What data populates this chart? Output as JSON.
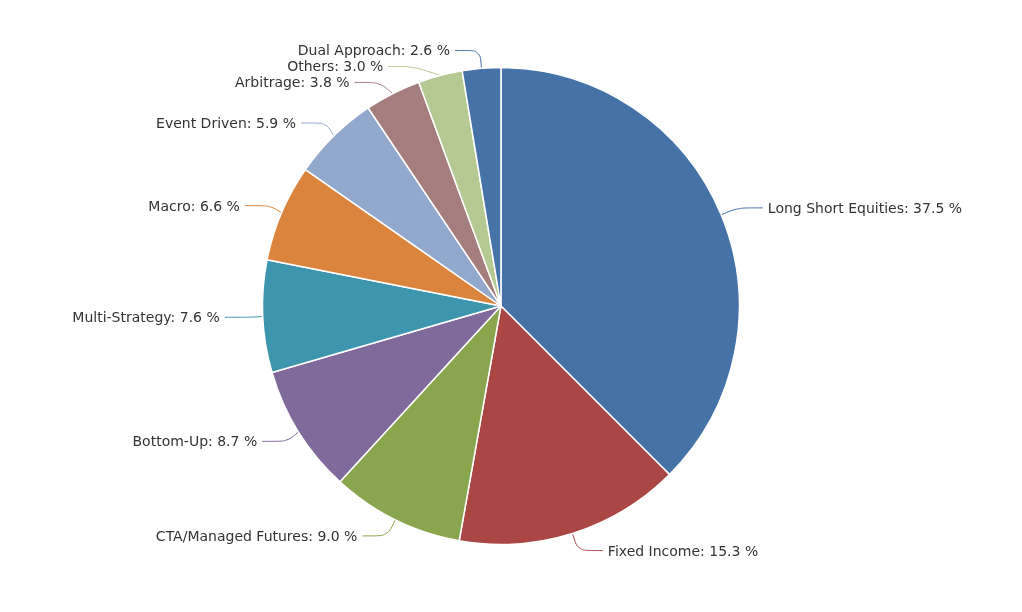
{
  "chart_data": {
    "type": "pie",
    "categories": [
      "Long Short Equities",
      "Fixed Income",
      "CTA/Managed Futures",
      "Bottom-Up",
      "Multi-Strategy",
      "Macro",
      "Event Driven",
      "Arbitrage",
      "Others",
      "Dual Approach"
    ],
    "values": [
      37.5,
      15.3,
      9.0,
      8.7,
      7.6,
      6.6,
      5.9,
      3.8,
      3.0,
      2.6
    ],
    "value_labels": [
      "37.5 %",
      "15.3 %",
      "9.0 %",
      "8.7 %",
      "7.6 %",
      "6.6 %",
      "5.9 %",
      "3.8 %",
      "3.0 %",
      "2.6 %"
    ],
    "colors": [
      "#4572a7",
      "#aa4643",
      "#89a54e",
      "#80699b",
      "#3d96ae",
      "#db843d",
      "#92a8cd",
      "#a47d7c",
      "#b5ca92",
      "#4572a7"
    ],
    "legend": false
  }
}
